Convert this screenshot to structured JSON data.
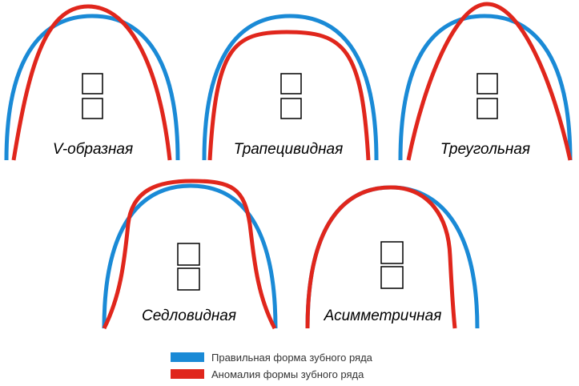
{
  "colors": {
    "normal": "#1a8ad6",
    "anomaly": "#e0261c",
    "text": "#000000"
  },
  "arches": [
    {
      "label": "V-образная"
    },
    {
      "label": "Трапецивидная"
    },
    {
      "label": "Треугольная"
    },
    {
      "label": "Седловидная"
    },
    {
      "label": "Асимметричная"
    }
  ],
  "legend": {
    "normal_label": "Правильная форма зубного ряда",
    "anomaly_label": "Аномалия формы зубного ряда"
  }
}
